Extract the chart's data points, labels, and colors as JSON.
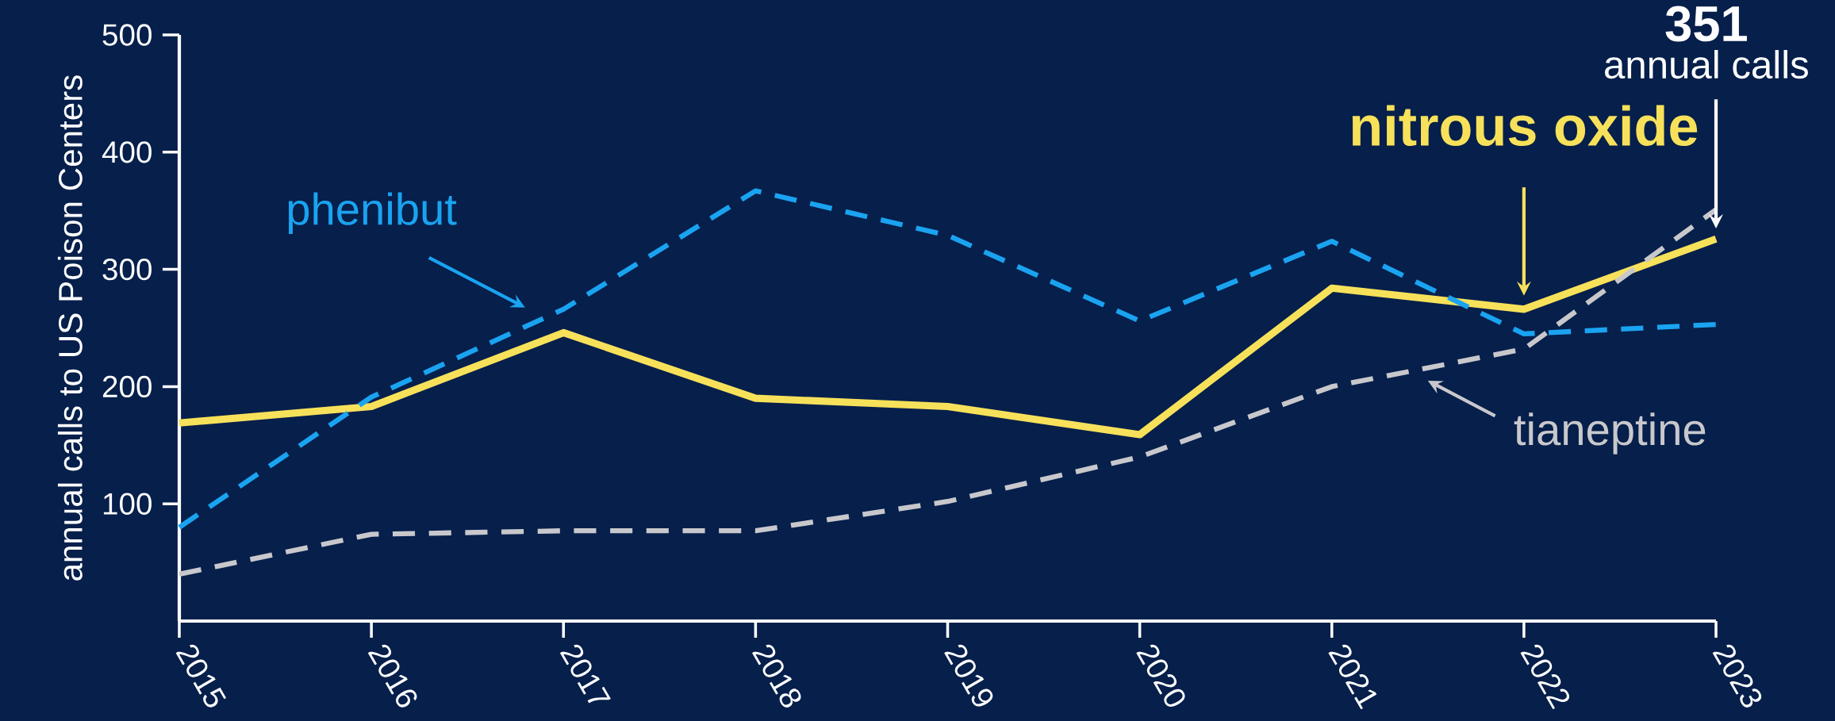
{
  "chart_data": {
    "type": "line",
    "ylabel": "annual calls to US Poison Centers",
    "categories": [
      "2015",
      "2016",
      "2017",
      "2018",
      "2019",
      "2020",
      "2021",
      "2022",
      "2023"
    ],
    "series": [
      {
        "name": "nitrous oxide",
        "color": "#f7e15a",
        "line_style": "solid",
        "values": [
          169,
          183,
          246,
          190,
          183,
          159,
          284,
          266,
          326
        ]
      },
      {
        "name": "phenibut",
        "color": "#1aa3f0",
        "line_style": "dashed",
        "values": [
          80,
          191,
          266,
          367,
          329,
          256,
          324,
          245,
          253
        ]
      },
      {
        "name": "tianeptine",
        "color": "#c8c8cc",
        "line_style": "dashed",
        "values": [
          40,
          74,
          77,
          77,
          102,
          140,
          200,
          232,
          351
        ]
      }
    ],
    "ylim": [
      0,
      500
    ],
    "yticks": [
      100,
      200,
      300,
      400,
      500
    ],
    "grid": false,
    "annotations": [
      "351",
      "annual calls"
    ]
  }
}
